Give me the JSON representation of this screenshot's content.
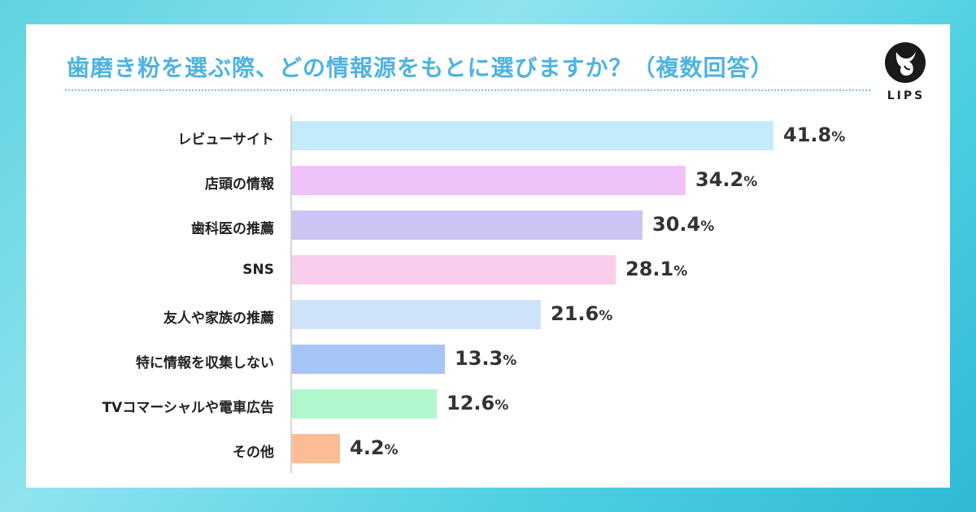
{
  "chart_data": {
    "type": "bar",
    "orientation": "horizontal",
    "title": "歯磨き粉を選ぶ際、どの情報源をもとに選びますか？（複数回答）",
    "categories": [
      "レビューサイト",
      "店頭の情報",
      "歯科医の推薦",
      "SNS",
      "友人や家族の推薦",
      "特に情報を収集しない",
      "TVコマーシャルや電車広告",
      "その他"
    ],
    "values": [
      41.8,
      34.2,
      30.4,
      28.1,
      21.6,
      13.3,
      12.6,
      4.2
    ],
    "unit": "%",
    "colors": [
      "#c4ebf9",
      "#efc3f9",
      "#cbc5f4",
      "#fbcdec",
      "#cfe4fa",
      "#a6c5f5",
      "#b1f6cd",
      "#fdbc93"
    ],
    "xlim": [
      0,
      41.8
    ],
    "xlabel": "",
    "ylabel": ""
  },
  "brand": {
    "logo_text": "LIPS"
  }
}
